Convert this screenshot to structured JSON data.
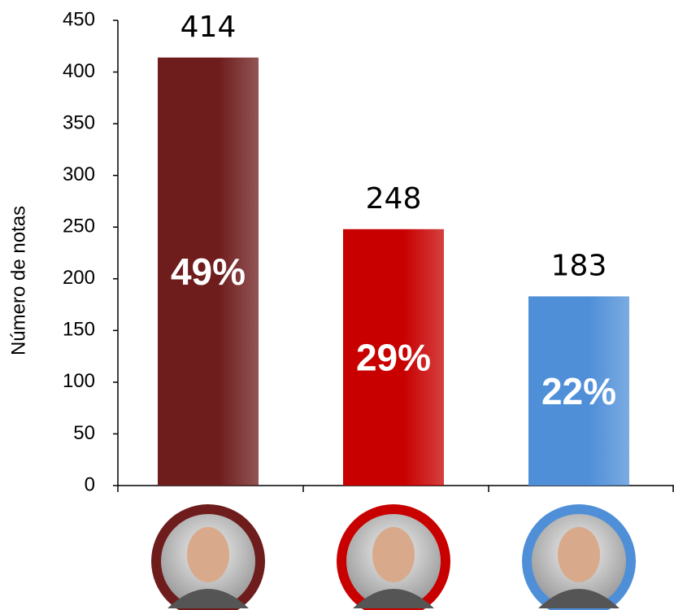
{
  "chart_data": {
    "type": "bar",
    "y_label": "Número de notas",
    "categories": [
      null,
      null,
      null
    ],
    "values": [
      414,
      248,
      183
    ],
    "percent_labels": [
      "49%",
      "29%",
      "22%"
    ],
    "colors": [
      "#6e1c1c",
      "#c80000",
      "#4f8fd8"
    ],
    "ylim": [
      0,
      450
    ],
    "yticks": [
      0,
      50,
      100,
      150,
      200,
      250,
      300,
      350,
      400,
      450
    ]
  }
}
